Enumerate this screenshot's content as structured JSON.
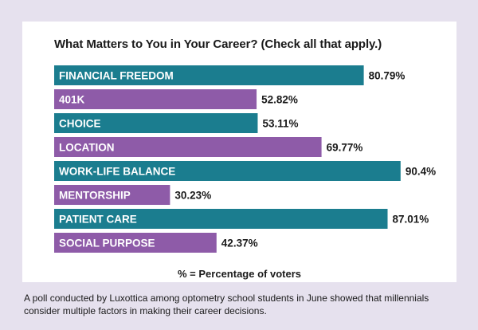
{
  "chart_data": {
    "type": "bar",
    "orientation": "horizontal",
    "title": "What Matters to You in Your Career? (Check all that apply.)",
    "categories": [
      "FINANCIAL FREEDOM",
      "401K",
      "CHOICE",
      "LOCATION",
      "WORK-LIFE BALANCE",
      "MENTORSHIP",
      "PATIENT CARE",
      "SOCIAL PURPOSE"
    ],
    "values": [
      80.79,
      52.82,
      53.11,
      69.77,
      90.4,
      30.23,
      87.01,
      42.37
    ],
    "value_labels": [
      "80.79%",
      "52.82%",
      "53.11%",
      "69.77%",
      "90.4%",
      "30.23%",
      "87.01%",
      "42.37%"
    ],
    "bar_colors": [
      "#1b7d8f",
      "#8e5ba8",
      "#1b7d8f",
      "#8e5ba8",
      "#1b7d8f",
      "#8e5ba8",
      "#1b7d8f",
      "#8e5ba8"
    ],
    "xlim": [
      0,
      100
    ],
    "grid": false,
    "legend": "none",
    "note": "% = Percentage of voters"
  },
  "caption": "A poll conducted by Luxottica among optometry school students in June showed that millennials consider multiple factors in making their career decisions."
}
